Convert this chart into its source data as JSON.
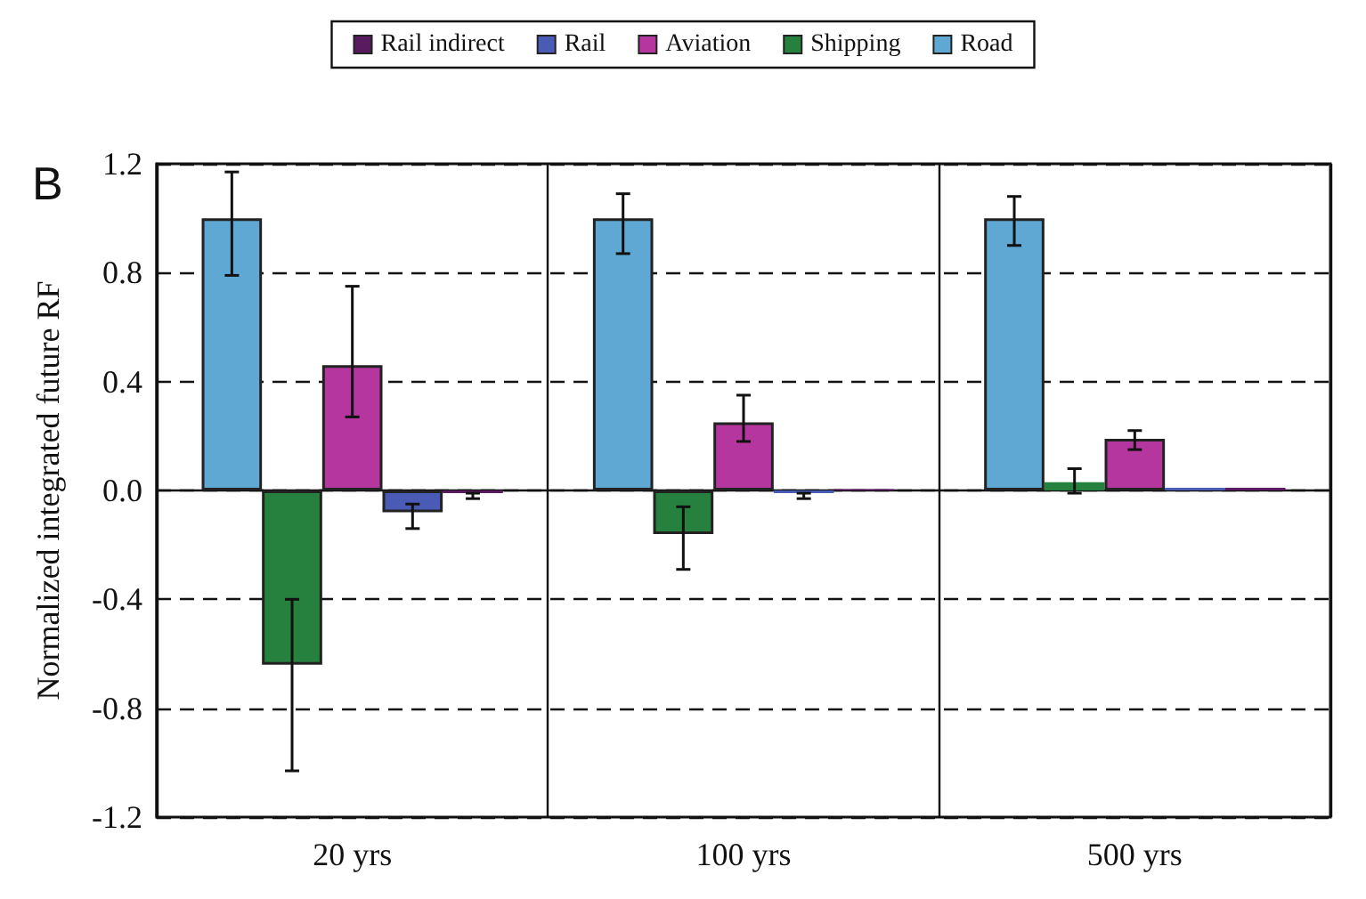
{
  "chart_data": {
    "type": "bar",
    "ylabel": "Normalized integrated future RF",
    "annotations": [
      "B"
    ],
    "categories": [
      "20 yrs",
      "100 yrs",
      "500 yrs"
    ],
    "series": [
      {
        "name": "Road",
        "color": "#5fa8d3",
        "values": [
          1.0,
          1.0,
          1.0
        ],
        "errors": [
          [
            0.79,
            1.17
          ],
          [
            0.87,
            1.09
          ],
          [
            0.9,
            1.08
          ]
        ]
      },
      {
        "name": "Shipping",
        "color": "#27813e",
        "values": [
          -0.64,
          -0.16,
          0.03
        ],
        "errors": [
          [
            -1.03,
            -0.4
          ],
          [
            -0.29,
            -0.06
          ],
          [
            -0.01,
            0.08
          ]
        ]
      },
      {
        "name": "Aviation",
        "color": "#b5369e",
        "values": [
          0.46,
          0.25,
          0.19
        ],
        "errors": [
          [
            0.27,
            0.75
          ],
          [
            0.18,
            0.35
          ],
          [
            0.15,
            0.22
          ]
        ]
      },
      {
        "name": "Rail",
        "color": "#4a5bb5",
        "values": [
          -0.08,
          -0.01,
          0.01
        ],
        "errors": [
          [
            -0.14,
            -0.05
          ],
          [
            -0.03,
            -0.01
          ],
          null
        ]
      },
      {
        "name": "Rail indirect",
        "color": "#5a1a60",
        "values": [
          -0.01,
          0.005,
          0.01
        ],
        "errors": [
          [
            -0.03,
            -0.01
          ],
          null,
          null
        ]
      }
    ],
    "ylim": [
      -1.2,
      1.2
    ],
    "yticks": [
      {
        "value": -1.2,
        "label": "-1.2"
      },
      {
        "value": -0.8,
        "label": "-0.8"
      },
      {
        "value": -0.4,
        "label": "-0.4"
      },
      {
        "value": 0,
        "label": "0.0"
      },
      {
        "value": 0.4,
        "label": "0.4"
      },
      {
        "value": 0.8,
        "label": "0.8"
      },
      {
        "value": 1.2,
        "label": "1.2"
      }
    ],
    "grid": true,
    "legend": "top"
  }
}
